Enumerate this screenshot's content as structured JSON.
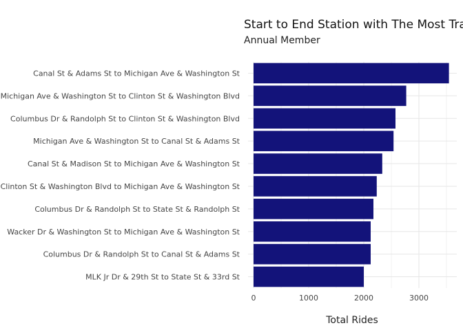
{
  "chart_data": {
    "type": "bar",
    "orientation": "horizontal",
    "title": "Start to End Station with The Most Traffic",
    "subtitle": "Annual Member",
    "xlabel": "Total Rides",
    "ylabel": "",
    "categories": [
      "Canal St & Adams St to Michigan Ave & Washington St",
      "Michigan Ave & Washington St to Clinton St & Washington Blvd",
      "Columbus Dr & Randolph St to Clinton St & Washington Blvd",
      "Michigan Ave & Washington St to Canal St & Adams St",
      "Canal St & Madison St to Michigan Ave & Washington St",
      "Clinton St & Washington Blvd to Michigan Ave & Washington St",
      "Columbus Dr & Randolph St to State St & Randolph St",
      "Wacker Dr & Washington St to Michigan Ave & Washington St",
      "Columbus Dr & Randolph St to Canal St & Adams St",
      "MLK Jr Dr & 29th St to State St & 33rd St"
    ],
    "values": [
      3545,
      2770,
      2575,
      2540,
      2335,
      2235,
      2175,
      2125,
      2125,
      2000
    ],
    "xlim": [
      0,
      3700
    ],
    "xticks": [
      0,
      1000,
      2000,
      3000
    ],
    "xtick_labels": [
      "0",
      "1000",
      "2000",
      "3000"
    ],
    "bar_color": "#13137a",
    "grid": true,
    "legend": "none"
  }
}
